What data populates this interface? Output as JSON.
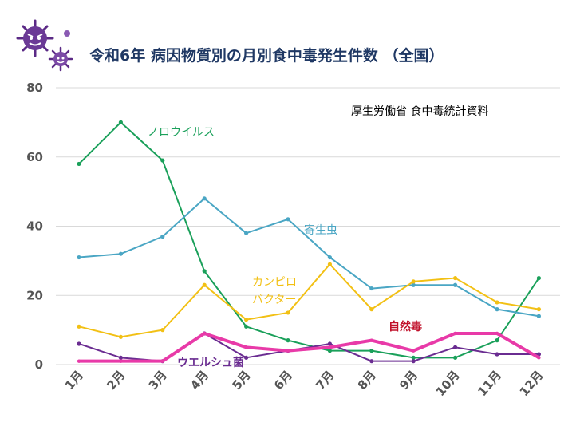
{
  "chart_data": {
    "type": "line",
    "title": "令和6年  病因物質別の月別食中毒発生件数 （全国）",
    "source": "厚生労働省  食中毒統計資料",
    "categories": [
      "1月",
      "2月",
      "3月",
      "4月",
      "5月",
      "6月",
      "7月",
      "8月",
      "9月",
      "10月",
      "11月",
      "12月"
    ],
    "ylim": [
      0,
      80
    ],
    "yticks": [
      0,
      20,
      40,
      60,
      80
    ],
    "grid": true,
    "series": [
      {
        "name": "ノロウイルス",
        "label_lines": [
          "ノロウイルス"
        ],
        "color": "#1aa05a",
        "width": 2,
        "values": [
          58,
          70,
          59,
          27,
          11,
          7,
          4,
          4,
          2,
          2,
          7,
          25
        ]
      },
      {
        "name": "寄生虫",
        "label_lines": [
          "寄生虫"
        ],
        "color": "#4aa6c4",
        "width": 2,
        "values": [
          31,
          32,
          37,
          48,
          38,
          42,
          31,
          22,
          23,
          23,
          16,
          14
        ]
      },
      {
        "name": "カンピロバクター",
        "label_lines": [
          "カンピロ",
          "バクター"
        ],
        "color": "#f2c014",
        "width": 2,
        "values": [
          11,
          8,
          10,
          23,
          13,
          15,
          29,
          16,
          24,
          25,
          18,
          16
        ]
      },
      {
        "name": "ウエルシュ菌",
        "label_lines": [
          "ウエルシュ菌"
        ],
        "color": "#6a2c91",
        "width": 2,
        "values": [
          6,
          2,
          1,
          9,
          2,
          4,
          6,
          1,
          1,
          5,
          3,
          3
        ]
      },
      {
        "name": "自然毒",
        "label_lines": [
          "自然毒"
        ],
        "color": "#e83aa8",
        "width": 4,
        "values": [
          1,
          1,
          1,
          9,
          5,
          4,
          5,
          7,
          4,
          9,
          9,
          2
        ]
      }
    ]
  }
}
